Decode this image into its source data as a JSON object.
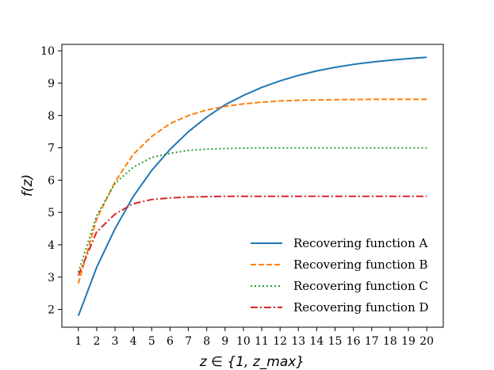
{
  "chart_data": {
    "type": "line",
    "title": "",
    "xlabel": "z ∈ {1, z_max}",
    "ylabel": "f(z)",
    "x": [
      1,
      2,
      3,
      4,
      5,
      6,
      7,
      8,
      9,
      10,
      11,
      12,
      13,
      14,
      15,
      16,
      17,
      18,
      19,
      20
    ],
    "xlim": [
      0.1,
      20.9
    ],
    "ylim": [
      1.45,
      10.2
    ],
    "xticks": [
      "1",
      "2",
      "3",
      "4",
      "5",
      "6",
      "7",
      "8",
      "9",
      "10",
      "11",
      "12",
      "13",
      "14",
      "15",
      "16",
      "17",
      "18",
      "19",
      "20"
    ],
    "yticks": [
      "2",
      "3",
      "4",
      "5",
      "6",
      "7",
      "8",
      "9",
      "10"
    ],
    "grid": false,
    "legend_position": "lower-right",
    "series": [
      {
        "name": "Recovering function A",
        "color": "#1f77b4",
        "style": "solid",
        "values": [
          1.8,
          3.3,
          4.5,
          5.5,
          6.3,
          6.95,
          7.5,
          7.95,
          8.33,
          8.62,
          8.87,
          9.07,
          9.24,
          9.38,
          9.49,
          9.58,
          9.65,
          9.71,
          9.76,
          9.8
        ]
      },
      {
        "name": "Recovering function B",
        "color": "#ff7f0e",
        "style": "dashed",
        "values": [
          2.8,
          4.8,
          5.95,
          6.8,
          7.35,
          7.75,
          8.0,
          8.17,
          8.28,
          8.36,
          8.41,
          8.45,
          8.47,
          8.48,
          8.49,
          8.495,
          8.5,
          8.5,
          8.5,
          8.5
        ]
      },
      {
        "name": "Recovering function C",
        "color": "#2ca02c",
        "style": "dotted",
        "values": [
          3.15,
          4.9,
          5.9,
          6.4,
          6.7,
          6.83,
          6.92,
          6.96,
          6.98,
          6.99,
          7.0,
          7.0,
          7.0,
          7.0,
          7.0,
          7.0,
          7.0,
          7.0,
          7.0,
          7.0
        ]
      },
      {
        "name": "Recovering function D",
        "color": "#d62728",
        "style": "dashdot",
        "values": [
          3.05,
          4.4,
          4.95,
          5.27,
          5.4,
          5.45,
          5.48,
          5.49,
          5.5,
          5.5,
          5.5,
          5.5,
          5.5,
          5.5,
          5.5,
          5.5,
          5.5,
          5.5,
          5.5,
          5.5
        ]
      }
    ]
  }
}
